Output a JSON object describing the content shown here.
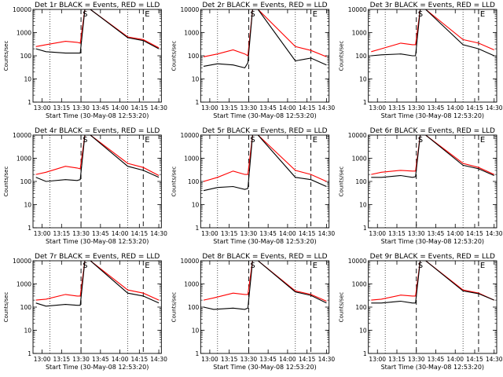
{
  "chart_data": [
    {
      "type": "line",
      "title": "Det 1r BLACK = Events, RED = LLD",
      "xlabel": "Start Time (30-May-08 12:53:20)",
      "ylabel": "Counts/sec",
      "yscale": "log",
      "ylim": [
        1,
        10000
      ],
      "xticks": [
        "13:00",
        "13:15",
        "13:30",
        "13:45",
        "14:00",
        "14:15",
        "14:30"
      ],
      "markers": [
        {
          "label": "S",
          "x": 13.5,
          "style": "dashed"
        },
        {
          "label": "E",
          "x": 14.3,
          "style": "dashed"
        }
      ],
      "dotted_lines": [
        13.1,
        14.1
      ],
      "series": [
        {
          "color": "#ff0000",
          "x": [
            12.92,
            13.05,
            13.3,
            13.45,
            13.49,
            13.55,
            13.62,
            14.1,
            14.3,
            14.5
          ],
          "y": [
            250,
            300,
            420,
            380,
            350,
            10000,
            10000,
            650,
            500,
            220
          ]
        },
        {
          "color": "#000000",
          "x": [
            12.92,
            13.05,
            13.3,
            13.45,
            13.49,
            13.55,
            13.62,
            14.1,
            14.3,
            14.5
          ],
          "y": [
            200,
            150,
            130,
            130,
            130,
            10000,
            10000,
            600,
            450,
            200
          ]
        }
      ]
    },
    {
      "type": "line",
      "title": "Det 2r BLACK = Events, RED = LLD",
      "xlabel": "Start Time (30-May-08 12:53:20)",
      "ylabel": "Counts/sec",
      "yscale": "log",
      "ylim": [
        1,
        10000
      ],
      "xticks": [
        "13:00",
        "13:15",
        "13:30",
        "13:45",
        "14:00",
        "14:15",
        "14:30"
      ],
      "markers": [
        {
          "label": "S",
          "x": 13.5,
          "style": "dashed"
        },
        {
          "label": "E",
          "x": 14.3,
          "style": "dashed"
        }
      ],
      "dotted_lines": [
        13.1,
        14.1
      ],
      "series": [
        {
          "color": "#ff0000",
          "x": [
            12.92,
            13.1,
            13.3,
            13.45,
            13.49,
            13.55,
            13.62,
            14.1,
            14.3,
            14.5
          ],
          "y": [
            90,
            120,
            180,
            120,
            100,
            10000,
            10000,
            250,
            170,
            90
          ]
        },
        {
          "color": "#000000",
          "x": [
            12.92,
            13.1,
            13.3,
            13.45,
            13.49,
            13.55,
            13.62,
            14.1,
            14.3,
            14.5
          ],
          "y": [
            35,
            45,
            40,
            30,
            50,
            10000,
            10000,
            60,
            80,
            40
          ]
        }
      ]
    },
    {
      "type": "line",
      "title": "Det 3r BLACK = Events, RED = LLD",
      "xlabel": "Start Time (30-May-08 12:53:20)",
      "ylabel": "Counts/sec",
      "yscale": "log",
      "ylim": [
        1,
        10000
      ],
      "xticks": [
        "13:00",
        "13:15",
        "13:30",
        "13:45",
        "14:00",
        "14:15",
        "14:30"
      ],
      "markers": [
        {
          "label": "S",
          "x": 13.5,
          "style": "dashed"
        },
        {
          "label": "E",
          "x": 14.3,
          "style": "dashed"
        }
      ],
      "dotted_lines": [
        13.1,
        14.1
      ],
      "series": [
        {
          "color": "#ff0000",
          "x": [
            12.92,
            13.05,
            13.3,
            13.45,
            13.49,
            13.55,
            13.62,
            14.1,
            14.3,
            14.5
          ],
          "y": [
            150,
            200,
            350,
            300,
            300,
            10000,
            10000,
            500,
            350,
            180
          ]
        },
        {
          "color": "#000000",
          "x": [
            12.92,
            13.05,
            13.3,
            13.45,
            13.49,
            13.55,
            13.62,
            14.1,
            14.3,
            14.5
          ],
          "y": [
            100,
            110,
            120,
            100,
            100,
            10000,
            10000,
            300,
            200,
            100
          ]
        }
      ]
    },
    {
      "type": "line",
      "title": "Det 4r BLACK = Events, RED = LLD",
      "xlabel": "Start Time (30-May-08 12:53:20)",
      "ylabel": "Counts/sec",
      "yscale": "log",
      "ylim": [
        1,
        10000
      ],
      "xticks": [
        "13:00",
        "13:15",
        "13:30",
        "13:45",
        "14:00",
        "14:15",
        "14:30"
      ],
      "markers": [
        {
          "label": "S",
          "x": 13.5,
          "style": "dashed"
        },
        {
          "label": "E",
          "x": 14.3,
          "style": "dashed"
        }
      ],
      "dotted_lines": [
        13.1,
        14.1
      ],
      "series": [
        {
          "color": "#ff0000",
          "x": [
            12.92,
            13.05,
            13.3,
            13.45,
            13.49,
            13.55,
            13.62,
            14.1,
            14.3,
            14.5
          ],
          "y": [
            200,
            250,
            450,
            380,
            350,
            10000,
            10000,
            600,
            400,
            180
          ]
        },
        {
          "color": "#000000",
          "x": [
            12.92,
            13.05,
            13.3,
            13.45,
            13.49,
            13.55,
            13.62,
            14.1,
            14.3,
            14.5
          ],
          "y": [
            150,
            100,
            120,
            110,
            120,
            10000,
            10000,
            450,
            300,
            150
          ]
        }
      ]
    },
    {
      "type": "line",
      "title": "Det 5r BLACK = Events, RED = LLD",
      "xlabel": "Start Time (30-May-08 12:53:20)",
      "ylabel": "Counts/sec",
      "yscale": "log",
      "ylim": [
        1,
        10000
      ],
      "xticks": [
        "13:00",
        "13:15",
        "13:30",
        "13:45",
        "14:00",
        "14:15",
        "14:30"
      ],
      "markers": [
        {
          "label": "S",
          "x": 13.5,
          "style": "dashed"
        },
        {
          "label": "E",
          "x": 14.3,
          "style": "dashed"
        }
      ],
      "dotted_lines": [
        13.1,
        14.1
      ],
      "series": [
        {
          "color": "#ff0000",
          "x": [
            12.92,
            13.1,
            13.3,
            13.45,
            13.49,
            13.55,
            13.62,
            14.1,
            14.3,
            14.5
          ],
          "y": [
            100,
            150,
            280,
            200,
            200,
            10000,
            10000,
            300,
            200,
            100
          ]
        },
        {
          "color": "#000000",
          "x": [
            12.92,
            13.1,
            13.3,
            13.45,
            13.49,
            13.55,
            13.62,
            14.1,
            14.3,
            14.5
          ],
          "y": [
            40,
            55,
            60,
            45,
            50,
            10000,
            10000,
            150,
            120,
            60
          ]
        }
      ]
    },
    {
      "type": "line",
      "title": "Det 6r BLACK = Events, RED = LLD",
      "xlabel": "Start Time (30-May-08 12:53:20)",
      "ylabel": "Counts/sec",
      "yscale": "log",
      "ylim": [
        1,
        10000
      ],
      "xticks": [
        "13:00",
        "13:15",
        "13:30",
        "13:45",
        "14:00",
        "14:15",
        "14:30"
      ],
      "markers": [
        {
          "label": "S",
          "x": 13.5,
          "style": "dashed"
        },
        {
          "label": "E",
          "x": 14.3,
          "style": "dashed"
        }
      ],
      "dotted_lines": [
        13.1,
        14.1
      ],
      "series": [
        {
          "color": "#ff0000",
          "x": [
            12.92,
            13.05,
            13.3,
            13.45,
            13.49,
            13.55,
            13.62,
            14.1,
            14.3,
            14.5
          ],
          "y": [
            200,
            250,
            300,
            280,
            280,
            10000,
            10000,
            600,
            400,
            200
          ]
        },
        {
          "color": "#000000",
          "x": [
            12.92,
            13.05,
            13.3,
            13.45,
            13.49,
            13.55,
            13.62,
            14.1,
            14.3,
            14.5
          ],
          "y": [
            150,
            150,
            180,
            150,
            160,
            10000,
            10000,
            500,
            350,
            180
          ]
        }
      ]
    },
    {
      "type": "line",
      "title": "Det 7r BLACK = Events, RED = LLD",
      "xlabel": "Start Time (30-May-08 12:53:20)",
      "ylabel": "Counts/sec",
      "yscale": "log",
      "ylim": [
        1,
        10000
      ],
      "xticks": [
        "13:00",
        "13:15",
        "13:30",
        "13:45",
        "14:00",
        "14:15",
        "14:30"
      ],
      "markers": [
        {
          "label": "S",
          "x": 13.5,
          "style": "dashed"
        },
        {
          "label": "E",
          "x": 14.3,
          "style": "dashed"
        }
      ],
      "dotted_lines": [
        13.1,
        14.1
      ],
      "series": [
        {
          "color": "#ff0000",
          "x": [
            12.92,
            13.05,
            13.3,
            13.45,
            13.49,
            13.55,
            13.62,
            14.1,
            14.3,
            14.5
          ],
          "y": [
            200,
            220,
            350,
            300,
            300,
            10000,
            10000,
            550,
            400,
            200
          ]
        },
        {
          "color": "#000000",
          "x": [
            12.92,
            13.05,
            13.3,
            13.45,
            13.49,
            13.55,
            13.62,
            14.1,
            14.3,
            14.5
          ],
          "y": [
            150,
            110,
            130,
            120,
            120,
            10000,
            10000,
            400,
            300,
            150
          ]
        }
      ]
    },
    {
      "type": "line",
      "title": "Det 8r BLACK = Events, RED = LLD",
      "xlabel": "Start Time (30-May-08 12:53:20)",
      "ylabel": "Counts/sec",
      "yscale": "log",
      "ylim": [
        1,
        10000
      ],
      "xticks": [
        "13:00",
        "13:15",
        "13:30",
        "13:45",
        "14:00",
        "14:15",
        "14:30"
      ],
      "markers": [
        {
          "label": "S",
          "x": 13.5,
          "style": "dashed"
        },
        {
          "label": "E",
          "x": 14.3,
          "style": "dashed"
        }
      ],
      "dotted_lines": [
        13.1,
        14.1
      ],
      "series": [
        {
          "color": "#ff0000",
          "x": [
            12.92,
            13.05,
            13.3,
            13.45,
            13.49,
            13.55,
            13.62,
            14.1,
            14.3,
            14.5
          ],
          "y": [
            200,
            250,
            400,
            350,
            350,
            10000,
            10000,
            500,
            350,
            180
          ]
        },
        {
          "color": "#000000",
          "x": [
            12.92,
            13.05,
            13.3,
            13.45,
            13.49,
            13.55,
            13.62,
            14.1,
            14.3,
            14.5
          ],
          "y": [
            100,
            80,
            90,
            80,
            90,
            10000,
            10000,
            450,
            320,
            150
          ]
        }
      ]
    },
    {
      "type": "line",
      "title": "Det 9r BLACK = Events, RED = LLD",
      "xlabel": "Start Time (30-May-08 12:53:20)",
      "ylabel": "Counts/sec",
      "yscale": "log",
      "ylim": [
        1,
        10000
      ],
      "xticks": [
        "13:00",
        "13:15",
        "13:30",
        "13:45",
        "14:00",
        "14:15",
        "14:30"
      ],
      "markers": [
        {
          "label": "S",
          "x": 13.5,
          "style": "dashed"
        },
        {
          "label": "E",
          "x": 14.3,
          "style": "dashed"
        }
      ],
      "dotted_lines": [
        13.1,
        14.1
      ],
      "series": [
        {
          "color": "#ff0000",
          "x": [
            12.92,
            13.05,
            13.3,
            13.45,
            13.49,
            13.55,
            13.62,
            14.1,
            14.3,
            14.5
          ],
          "y": [
            200,
            220,
            330,
            300,
            300,
            10000,
            10000,
            550,
            400,
            200
          ]
        },
        {
          "color": "#000000",
          "x": [
            12.92,
            13.05,
            13.3,
            13.45,
            13.49,
            13.55,
            13.62,
            14.1,
            14.3,
            14.5
          ],
          "y": [
            150,
            150,
            180,
            150,
            150,
            10000,
            10000,
            500,
            380,
            200
          ]
        }
      ]
    }
  ]
}
